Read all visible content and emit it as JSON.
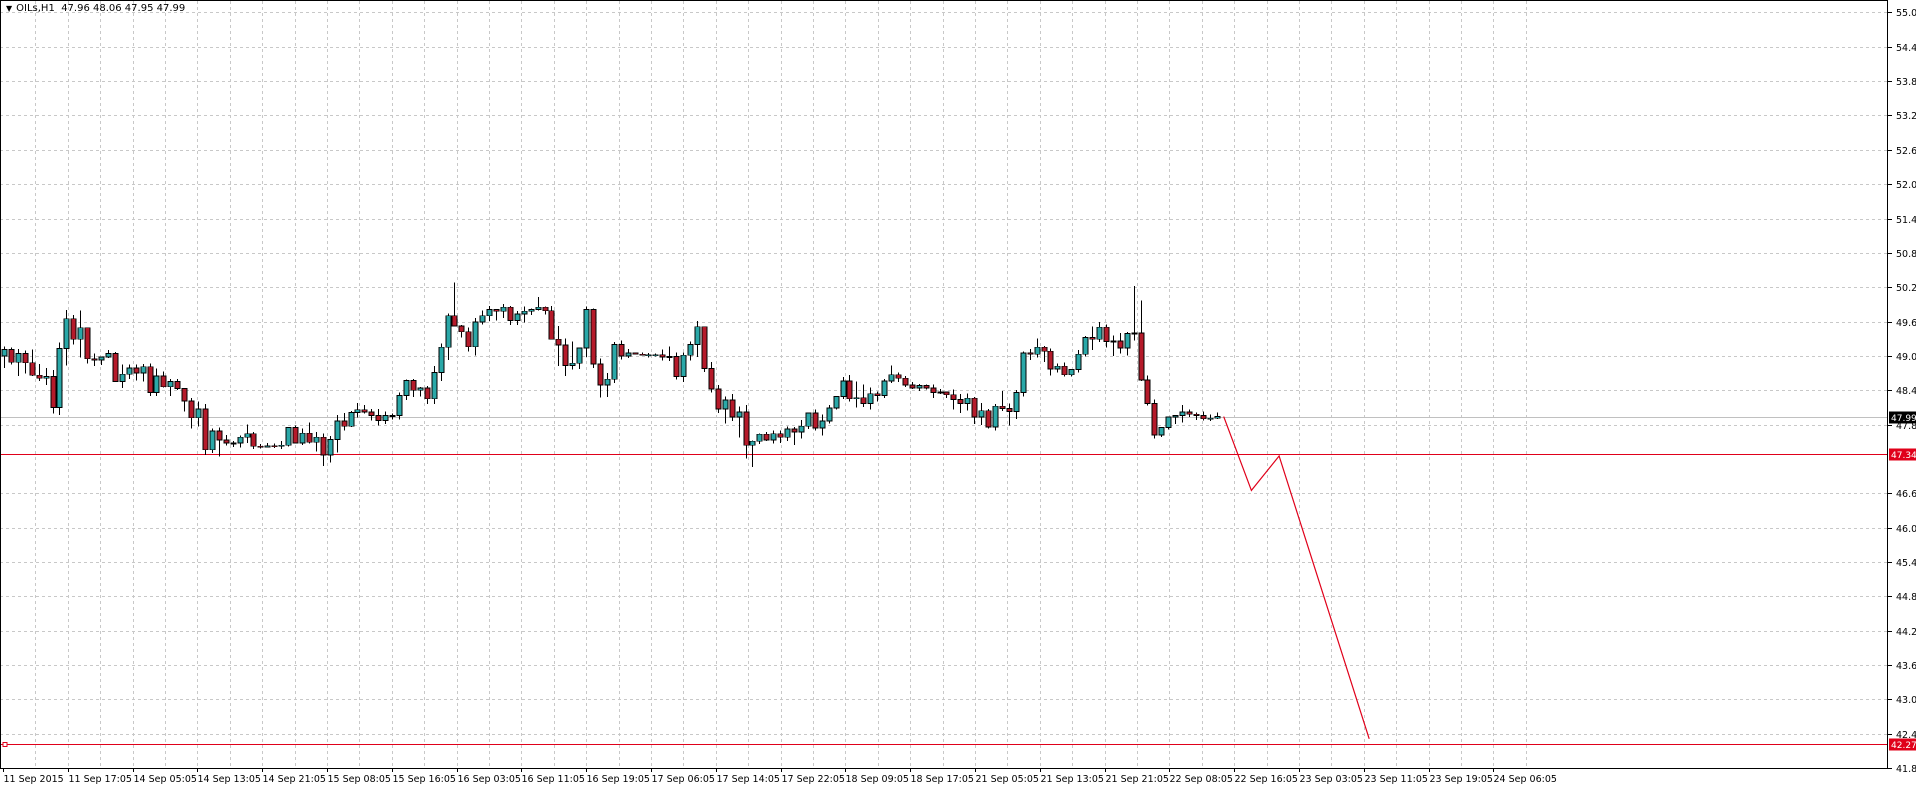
{
  "header": {
    "symbol_timeframe": "OILs,H1",
    "ohlc": "47.96 48.06 47.95 47.99"
  },
  "colors": {
    "bull": "#2aa8a8",
    "bear": "#b51a2a",
    "line": "#e0001a",
    "grid": "#c8c8c8",
    "current_label_bg": "#000000",
    "level_label_bg": "#e0001a"
  },
  "chart_data": {
    "type": "candlestick",
    "title": "OILs,H1",
    "ylim": [
      41.85,
      55.25
    ],
    "y_ticks": [
      "55.05",
      "54.45",
      "53.85",
      "53.25",
      "52.65",
      "52.05",
      "51.45",
      "50.85",
      "50.25",
      "49.65",
      "49.05",
      "48.45",
      "47.85",
      "46.65",
      "46.05",
      "45.45",
      "44.85",
      "44.25",
      "43.65",
      "43.05",
      "42.45",
      "41.85"
    ],
    "x_ticks": [
      "11 Sep 2015",
      "11 Sep 17:05",
      "14 Sep 05:05",
      "14 Sep 13:05",
      "14 Sep 21:05",
      "15 Sep 08:05",
      "15 Sep 16:05",
      "16 Sep 03:05",
      "16 Sep 11:05",
      "16 Sep 19:05",
      "17 Sep 06:05",
      "17 Sep 14:05",
      "17 Sep 22:05",
      "18 Sep 09:05",
      "18 Sep 17:05",
      "21 Sep 05:05",
      "21 Sep 13:05",
      "21 Sep 21:05",
      "22 Sep 08:05",
      "22 Sep 16:05",
      "23 Sep 03:05",
      "23 Sep 11:05",
      "23 Sep 19:05",
      "24 Sep 06:05"
    ],
    "current_price": "47.99",
    "horizontal_levels": [
      "47.34",
      "42.27"
    ],
    "projection": [
      {
        "bar": 176.0,
        "price": 47.99
      },
      {
        "bar": 180.0,
        "price": 46.7
      },
      {
        "bar": 184.0,
        "price": 47.3
      },
      {
        "bar": 197.0,
        "price": 42.36
      }
    ],
    "bar_spacing_px": 6.93,
    "candles": [
      [
        49.05,
        49.21,
        48.84,
        49.16
      ],
      [
        49.16,
        49.2,
        48.9,
        48.94
      ],
      [
        48.94,
        49.17,
        48.7,
        49.09
      ],
      [
        49.09,
        49.14,
        48.74,
        48.93
      ],
      [
        48.93,
        49.16,
        48.7,
        48.71
      ],
      [
        48.71,
        48.91,
        48.61,
        48.66
      ],
      [
        48.66,
        48.84,
        48.54,
        48.69
      ],
      [
        48.69,
        48.8,
        48.04,
        48.15
      ],
      [
        48.15,
        49.28,
        48.02,
        49.18
      ],
      [
        49.18,
        49.85,
        48.88,
        49.7
      ],
      [
        49.7,
        49.76,
        49.25,
        49.34
      ],
      [
        49.34,
        49.84,
        49.02,
        49.54
      ],
      [
        49.54,
        49.55,
        48.92,
        49.0
      ],
      [
        49.0,
        49.09,
        48.87,
        48.98
      ],
      [
        48.98,
        49.04,
        48.89,
        49.03
      ],
      [
        49.03,
        49.15,
        49.01,
        49.09
      ],
      [
        49.09,
        49.12,
        48.59,
        48.6
      ],
      [
        48.6,
        48.9,
        48.49,
        48.73
      ],
      [
        48.73,
        48.9,
        48.65,
        48.84
      ],
      [
        48.84,
        48.9,
        48.62,
        48.75
      ],
      [
        48.75,
        48.91,
        48.6,
        48.86
      ],
      [
        48.86,
        48.92,
        48.35,
        48.41
      ],
      [
        48.41,
        48.83,
        48.35,
        48.7
      ],
      [
        48.7,
        48.78,
        48.5,
        48.51
      ],
      [
        48.51,
        48.65,
        48.35,
        48.6
      ],
      [
        48.6,
        48.65,
        48.45,
        48.48
      ],
      [
        48.48,
        48.49,
        48.08,
        48.26
      ],
      [
        48.26,
        48.31,
        47.78,
        47.97
      ],
      [
        47.97,
        48.25,
        47.82,
        48.12
      ],
      [
        48.12,
        48.21,
        47.32,
        47.41
      ],
      [
        47.41,
        47.78,
        47.35,
        47.74
      ],
      [
        47.74,
        47.8,
        47.29,
        47.58
      ],
      [
        47.58,
        47.67,
        47.48,
        47.53
      ],
      [
        47.53,
        47.56,
        47.46,
        47.53
      ],
      [
        47.53,
        47.66,
        47.45,
        47.63
      ],
      [
        47.63,
        47.85,
        47.53,
        47.69
      ],
      [
        47.69,
        47.72,
        47.42,
        47.47
      ],
      [
        47.47,
        47.51,
        47.43,
        47.46
      ],
      [
        47.46,
        47.53,
        47.45,
        47.48
      ],
      [
        47.48,
        47.52,
        47.44,
        47.47
      ],
      [
        47.47,
        47.56,
        47.42,
        47.49
      ],
      [
        47.49,
        47.81,
        47.47,
        47.8
      ],
      [
        47.8,
        47.83,
        47.52,
        47.53
      ],
      [
        47.53,
        47.78,
        47.49,
        47.7
      ],
      [
        47.7,
        47.89,
        47.52,
        47.54
      ],
      [
        47.54,
        47.72,
        47.38,
        47.63
      ],
      [
        47.63,
        47.69,
        47.13,
        47.32
      ],
      [
        47.32,
        47.65,
        47.19,
        47.59
      ],
      [
        47.59,
        48.02,
        47.36,
        47.91
      ],
      [
        47.91,
        48.05,
        47.75,
        47.82
      ],
      [
        47.82,
        48.09,
        47.81,
        48.06
      ],
      [
        48.06,
        48.23,
        47.97,
        48.11
      ],
      [
        48.11,
        48.19,
        48.04,
        48.07
      ],
      [
        48.07,
        48.12,
        47.92,
        48.01
      ],
      [
        48.01,
        48.12,
        47.83,
        47.92
      ],
      [
        47.92,
        48.08,
        47.86,
        48.01
      ],
      [
        48.01,
        48.04,
        47.94,
        48.01
      ],
      [
        48.01,
        48.41,
        47.94,
        48.36
      ],
      [
        48.36,
        48.64,
        48.28,
        48.62
      ],
      [
        48.62,
        48.65,
        48.33,
        48.45
      ],
      [
        48.45,
        48.51,
        48.34,
        48.49
      ],
      [
        48.49,
        48.52,
        48.21,
        48.3
      ],
      [
        48.3,
        48.87,
        48.21,
        48.76
      ],
      [
        48.76,
        49.27,
        48.61,
        49.2
      ],
      [
        49.2,
        49.79,
        48.98,
        49.75
      ],
      [
        49.75,
        50.33,
        49.56,
        49.57
      ],
      [
        49.57,
        49.59,
        49.37,
        49.47
      ],
      [
        49.47,
        49.55,
        49.13,
        49.21
      ],
      [
        49.21,
        49.71,
        49.06,
        49.64
      ],
      [
        49.64,
        49.84,
        49.6,
        49.75
      ],
      [
        49.75,
        49.92,
        49.66,
        49.86
      ],
      [
        49.86,
        49.87,
        49.67,
        49.83
      ],
      [
        49.83,
        49.96,
        49.71,
        49.9
      ],
      [
        49.9,
        49.92,
        49.59,
        49.67
      ],
      [
        49.67,
        49.83,
        49.59,
        49.78
      ],
      [
        49.78,
        49.91,
        49.63,
        49.83
      ],
      [
        49.83,
        49.88,
        49.76,
        49.86
      ],
      [
        49.86,
        50.08,
        49.84,
        49.9
      ],
      [
        49.9,
        49.91,
        49.77,
        49.84
      ],
      [
        49.84,
        49.92,
        49.34,
        49.34
      ],
      [
        49.34,
        49.57,
        48.87,
        49.24
      ],
      [
        49.24,
        49.35,
        48.7,
        48.88
      ],
      [
        48.88,
        49.3,
        48.81,
        48.92
      ],
      [
        48.92,
        49.13,
        48.82,
        49.19
      ],
      [
        49.19,
        49.91,
        49.03,
        49.86
      ],
      [
        49.86,
        49.88,
        48.84,
        48.91
      ],
      [
        48.91,
        49.0,
        48.32,
        48.54
      ],
      [
        48.54,
        48.75,
        48.33,
        48.64
      ],
      [
        48.64,
        49.29,
        48.58,
        49.25
      ],
      [
        49.25,
        49.32,
        48.99,
        49.05
      ],
      [
        49.05,
        49.17,
        49.01,
        49.1
      ],
      [
        49.1,
        49.11,
        49.07,
        49.08
      ],
      [
        49.08,
        49.11,
        49.06,
        49.07
      ],
      [
        49.07,
        49.1,
        49.02,
        49.07
      ],
      [
        49.07,
        49.09,
        49.04,
        49.07
      ],
      [
        49.07,
        49.16,
        48.97,
        49.03
      ],
      [
        49.03,
        49.21,
        48.96,
        49.04
      ],
      [
        49.04,
        49.11,
        48.64,
        48.69
      ],
      [
        48.69,
        49.11,
        48.59,
        49.06
      ],
      [
        49.06,
        49.3,
        48.97,
        49.25
      ],
      [
        49.25,
        49.66,
        49.03,
        49.56
      ],
      [
        49.56,
        49.56,
        48.77,
        48.83
      ],
      [
        48.83,
        48.94,
        48.41,
        48.47
      ],
      [
        48.47,
        48.54,
        48.05,
        48.12
      ],
      [
        48.12,
        48.34,
        47.87,
        48.28
      ],
      [
        48.28,
        48.38,
        47.91,
        47.98
      ],
      [
        47.98,
        48.17,
        47.62,
        48.07
      ],
      [
        48.07,
        48.19,
        47.26,
        47.49
      ],
      [
        47.49,
        47.57,
        47.11,
        47.56
      ],
      [
        47.56,
        47.69,
        47.51,
        47.68
      ],
      [
        47.68,
        47.72,
        47.56,
        47.58
      ],
      [
        47.58,
        47.75,
        47.52,
        47.69
      ],
      [
        47.69,
        47.75,
        47.53,
        47.63
      ],
      [
        47.63,
        47.82,
        47.56,
        47.77
      ],
      [
        47.77,
        47.81,
        47.49,
        47.72
      ],
      [
        47.72,
        47.93,
        47.61,
        47.82
      ],
      [
        47.82,
        48.06,
        47.77,
        48.05
      ],
      [
        48.05,
        48.11,
        47.75,
        47.79
      ],
      [
        47.79,
        48.03,
        47.66,
        47.91
      ],
      [
        47.91,
        48.19,
        47.87,
        48.14
      ],
      [
        48.14,
        48.35,
        48.11,
        48.34
      ],
      [
        48.34,
        48.68,
        48.3,
        48.61
      ],
      [
        48.61,
        48.72,
        48.25,
        48.3
      ],
      [
        48.3,
        48.6,
        48.15,
        48.32
      ],
      [
        48.32,
        48.55,
        48.16,
        48.22
      ],
      [
        48.22,
        48.5,
        48.11,
        48.39
      ],
      [
        48.39,
        48.43,
        48.25,
        48.36
      ],
      [
        48.36,
        48.65,
        48.31,
        48.61
      ],
      [
        48.61,
        48.88,
        48.58,
        48.72
      ],
      [
        48.72,
        48.76,
        48.59,
        48.66
      ],
      [
        48.66,
        48.7,
        48.51,
        48.54
      ],
      [
        48.54,
        48.59,
        48.47,
        48.49
      ],
      [
        48.49,
        48.56,
        48.44,
        48.53
      ],
      [
        48.53,
        48.55,
        48.46,
        48.49
      ],
      [
        48.49,
        48.55,
        48.31,
        48.41
      ],
      [
        48.41,
        48.47,
        48.38,
        48.42
      ],
      [
        48.42,
        48.43,
        48.31,
        48.37
      ],
      [
        48.37,
        48.46,
        48.11,
        48.29
      ],
      [
        48.29,
        48.38,
        48.05,
        48.22
      ],
      [
        48.22,
        48.39,
        48.1,
        48.31
      ],
      [
        48.31,
        48.33,
        47.86,
        47.98
      ],
      [
        47.98,
        48.23,
        47.84,
        48.09
      ],
      [
        48.09,
        48.12,
        47.78,
        47.81
      ],
      [
        47.81,
        48.21,
        47.75,
        48.17
      ],
      [
        48.17,
        48.44,
        48.09,
        48.13
      ],
      [
        48.13,
        48.22,
        47.83,
        48.08
      ],
      [
        48.08,
        48.45,
        47.95,
        48.41
      ],
      [
        48.41,
        49.13,
        48.34,
        49.1
      ],
      [
        49.1,
        49.17,
        48.98,
        49.08
      ],
      [
        49.08,
        49.35,
        49.02,
        49.2
      ],
      [
        49.2,
        49.22,
        48.94,
        49.13
      ],
      [
        49.13,
        49.18,
        48.71,
        48.82
      ],
      [
        48.82,
        48.92,
        48.76,
        48.87
      ],
      [
        48.87,
        48.93,
        48.69,
        48.72
      ],
      [
        48.72,
        48.82,
        48.69,
        48.81
      ],
      [
        48.81,
        49.15,
        48.76,
        49.08
      ],
      [
        49.08,
        49.4,
        49.04,
        49.37
      ],
      [
        49.37,
        49.56,
        49.15,
        49.34
      ],
      [
        49.34,
        49.64,
        49.29,
        49.55
      ],
      [
        49.55,
        49.6,
        49.2,
        49.3
      ],
      [
        49.3,
        49.41,
        49.05,
        49.31
      ],
      [
        49.31,
        49.45,
        49.09,
        49.19
      ],
      [
        49.19,
        49.47,
        49.06,
        49.44
      ],
      [
        49.44,
        50.27,
        49.32,
        49.45
      ],
      [
        49.45,
        50.02,
        48.61,
        48.63
      ],
      [
        48.63,
        48.71,
        48.18,
        48.22
      ],
      [
        48.22,
        48.29,
        47.61,
        47.67
      ],
      [
        47.67,
        47.81,
        47.63,
        47.8
      ],
      [
        47.8,
        47.99,
        47.76,
        47.98
      ],
      [
        47.98,
        48.02,
        47.86,
        48.01
      ],
      [
        48.01,
        48.19,
        47.89,
        48.07
      ],
      [
        48.07,
        48.11,
        47.98,
        48.03
      ],
      [
        48.03,
        48.06,
        47.93,
        48.01
      ],
      [
        48.01,
        48.08,
        47.92,
        47.95
      ],
      [
        47.95,
        48.03,
        47.91,
        47.96
      ],
      [
        47.96,
        48.06,
        47.95,
        47.99
      ]
    ]
  }
}
